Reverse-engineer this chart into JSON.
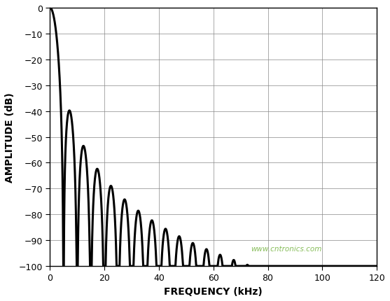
{
  "title": "",
  "xlabel": "FREQUENCY (kHz)",
  "ylabel": "AMPLITUDE (dB)",
  "xlim": [
    0,
    120
  ],
  "ylim": [
    -100,
    0
  ],
  "xticks": [
    0,
    20,
    40,
    60,
    80,
    100,
    120
  ],
  "yticks": [
    0,
    -10,
    -20,
    -30,
    -40,
    -50,
    -60,
    -70,
    -80,
    -90,
    -100
  ],
  "line_color": "#000000",
  "line_width": 2.2,
  "background_color": "#ffffff",
  "grid_color": "#888888",
  "watermark": "www.cntronics.com",
  "watermark_color": "#7ab648",
  "sinc_order": 3,
  "null_freq_khz": 5.0,
  "freq_max": 120,
  "num_points": 10000
}
